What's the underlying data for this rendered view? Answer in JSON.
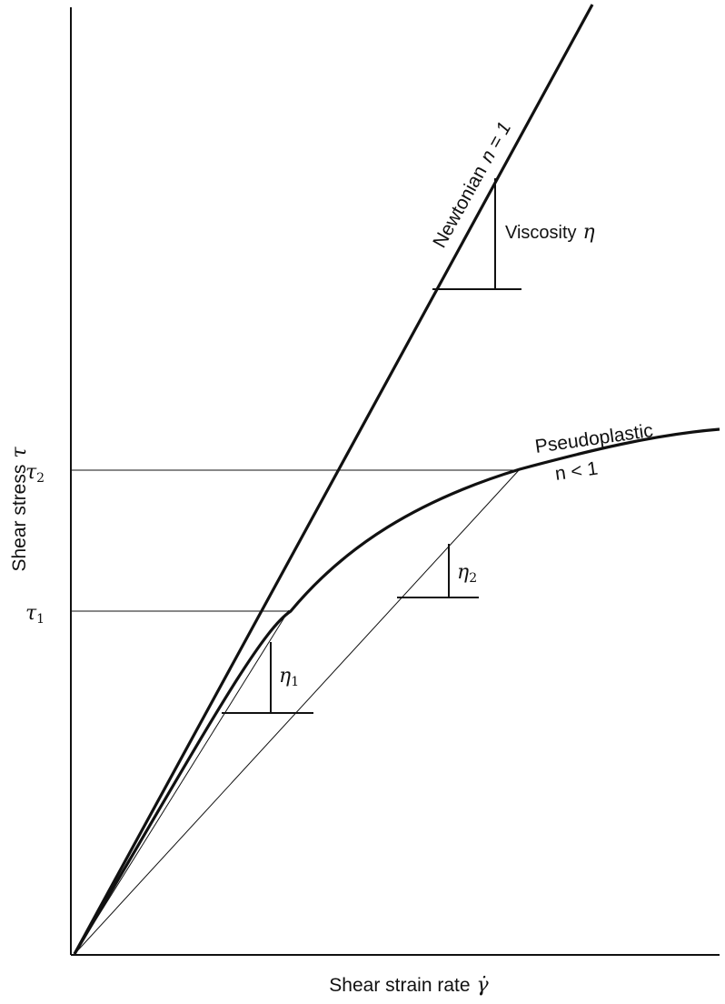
{
  "axes": {
    "x_label": "Shear strain rate",
    "x_symbol": "γ̇",
    "y_label": "Shear stress",
    "y_symbol": "τ"
  },
  "ticks": {
    "tau1": {
      "symbol": "τ",
      "sub": "1"
    },
    "tau2": {
      "symbol": "τ",
      "sub": "2"
    }
  },
  "curves": {
    "newtonian": {
      "name": "Newtonian",
      "n_label": "n = 1"
    },
    "pseudoplastic": {
      "name": "Pseudoplastic",
      "n_label": "n < 1"
    }
  },
  "slopes": {
    "viscosity": {
      "label": "Viscosity",
      "symbol": "η"
    },
    "eta1": {
      "symbol": "η",
      "sub": "1"
    },
    "eta2": {
      "symbol": "η",
      "sub": "2"
    }
  },
  "colors": {
    "ink": "#111111",
    "background": "#ffffff"
  }
}
